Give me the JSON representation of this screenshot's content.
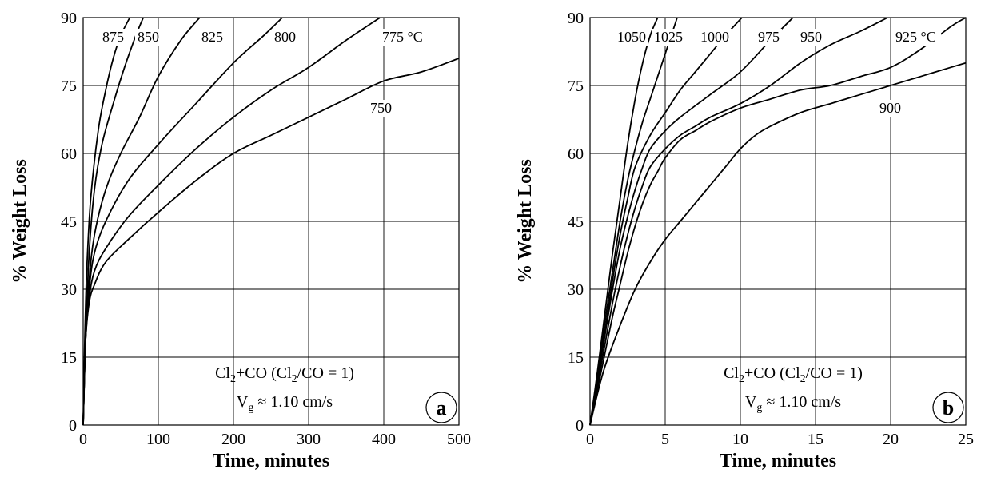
{
  "chart_data": [
    {
      "type": "line",
      "panel_label": "a",
      "xlabel": "Time, minutes",
      "ylabel": "% Weight Loss",
      "xlim": [
        0,
        500
      ],
      "ylim": [
        0,
        90
      ],
      "xticks": [
        "0",
        "100",
        "200",
        "300",
        "400",
        "500"
      ],
      "yticks": [
        "0",
        "15",
        "30",
        "45",
        "60",
        "75",
        "90"
      ],
      "grid": true,
      "legend": "none",
      "annotation_lines": [
        [
          "Cl",
          "2",
          "+CO (Cl",
          "2",
          "/CO = 1)"
        ],
        [
          "V",
          "g",
          " ≈ 1.10 cm/s"
        ]
      ],
      "series": [
        {
          "name": "875",
          "x": [
            0,
            2,
            5,
            10,
            20,
            30,
            40,
            50,
            62
          ],
          "y": [
            0,
            18,
            35,
            50,
            65,
            74,
            81,
            86,
            90
          ]
        },
        {
          "name": "850",
          "x": [
            0,
            3,
            8,
            15,
            25,
            40,
            55,
            70,
            80
          ],
          "y": [
            0,
            18,
            38,
            52,
            62,
            71,
            79,
            86,
            90
          ]
        },
        {
          "name": "825",
          "x": [
            0,
            3,
            8,
            15,
            30,
            50,
            75,
            100,
            130,
            155
          ],
          "y": [
            0,
            18,
            32,
            42,
            52,
            60,
            68,
            77,
            85,
            90
          ]
        },
        {
          "name": "800",
          "x": [
            0,
            3,
            8,
            15,
            30,
            60,
            100,
            150,
            200,
            240,
            265
          ],
          "y": [
            0,
            18,
            30,
            38,
            45,
            54,
            62,
            71,
            80,
            86,
            90
          ]
        },
        {
          "name": "775 °C",
          "x": [
            0,
            3,
            8,
            15,
            30,
            60,
            100,
            150,
            200,
            250,
            300,
            350,
            395
          ],
          "y": [
            0,
            18,
            28,
            34,
            39,
            46,
            53,
            61,
            68,
            74,
            79,
            85,
            90
          ]
        },
        {
          "name": "750",
          "x": [
            0,
            3,
            8,
            15,
            30,
            60,
            100,
            150,
            200,
            250,
            300,
            350,
            400,
            450,
            500
          ],
          "y": [
            0,
            18,
            27,
            31,
            36,
            41,
            47,
            54,
            60,
            64,
            68,
            72,
            76,
            78,
            81
          ]
        }
      ],
      "series_labels": [
        "875",
        "850",
        "825",
        "800",
        "775 °C",
        "750"
      ]
    },
    {
      "type": "line",
      "panel_label": "b",
      "xlabel": "Time, minutes",
      "ylabel": "% Weight Loss",
      "xlim": [
        0,
        25
      ],
      "ylim": [
        0,
        90
      ],
      "xticks": [
        "0",
        "5",
        "10",
        "15",
        "20",
        "25"
      ],
      "yticks": [
        "0",
        "15",
        "30",
        "45",
        "60",
        "75",
        "90"
      ],
      "grid": true,
      "legend": "none",
      "annotation_lines": [
        [
          "Cl",
          "2",
          "+CO (Cl",
          "2",
          "/CO = 1)"
        ],
        [
          "V",
          "g",
          " ≈ 1.10 cm/s"
        ]
      ],
      "series": [
        {
          "name": "1050",
          "x": [
            0,
            0.5,
            1,
            1.5,
            2,
            2.5,
            3,
            3.5,
            4,
            4.5
          ],
          "y": [
            0,
            12,
            25,
            38,
            50,
            62,
            72,
            80,
            86,
            90
          ]
        },
        {
          "name": "1025",
          "x": [
            0,
            0.5,
            1,
            1.5,
            2,
            2.5,
            3,
            3.5,
            4,
            4.5,
            5,
            5.5,
            5.8
          ],
          "y": [
            0,
            11,
            23,
            34,
            45,
            54,
            61,
            67,
            72,
            77,
            82,
            87,
            90
          ]
        },
        {
          "name": "1000",
          "x": [
            0,
            0.5,
            1,
            1.5,
            2,
            2.5,
            3,
            4,
            5,
            6,
            7,
            8,
            9,
            10.1
          ],
          "y": [
            0,
            10,
            21,
            32,
            42,
            50,
            57,
            64,
            69,
            74,
            78,
            82,
            86,
            90
          ]
        },
        {
          "name": "975",
          "x": [
            0,
            0.5,
            1,
            1.5,
            2,
            2.5,
            3,
            3.5,
            4,
            5,
            6,
            8,
            10,
            12,
            13.5
          ],
          "y": [
            0,
            10,
            20,
            30,
            39,
            46,
            52,
            57,
            61,
            65,
            68,
            73,
            78,
            85,
            90
          ]
        },
        {
          "name": "950",
          "x": [
            0,
            0.5,
            1,
            1.5,
            2,
            2.5,
            3,
            3.5,
            4,
            5,
            6,
            7,
            8,
            10,
            12,
            14,
            16,
            18,
            19.8
          ],
          "y": [
            0,
            9,
            18,
            27,
            35,
            42,
            48,
            53,
            57,
            61,
            64,
            66,
            68,
            71,
            75,
            80,
            84,
            87,
            90
          ]
        },
        {
          "name": "925 °C",
          "x": [
            0,
            0.5,
            1,
            1.5,
            2,
            2.5,
            3,
            3.5,
            4,
            4.5,
            5,
            6,
            7,
            8,
            10,
            12,
            14,
            16,
            18,
            20,
            22,
            24,
            25
          ],
          "y": [
            0,
            8,
            16,
            24,
            31,
            38,
            44,
            49,
            53,
            56,
            59,
            63,
            65,
            67,
            70,
            72,
            74,
            75,
            77,
            79,
            83,
            88,
            90
          ]
        },
        {
          "name": "900",
          "x": [
            0,
            0.5,
            1,
            2,
            3,
            4,
            5,
            6,
            7,
            8,
            9,
            10,
            11,
            12,
            14,
            16,
            18,
            20,
            22,
            24,
            25
          ],
          "y": [
            0,
            7,
            13,
            22,
            30,
            36,
            41,
            45,
            49,
            53,
            57,
            61,
            64,
            66,
            69,
            71,
            73,
            75,
            77,
            79,
            80
          ]
        }
      ],
      "series_labels": [
        "1050",
        "1025",
        "1000",
        "975",
        "950",
        "925 °C",
        "900"
      ]
    }
  ]
}
